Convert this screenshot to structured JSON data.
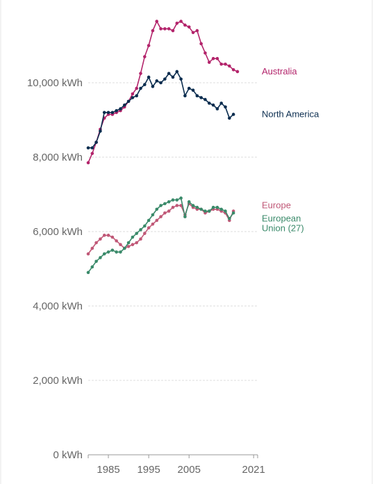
{
  "chart_data": {
    "type": "line",
    "title": "",
    "xlabel": "",
    "ylabel": "",
    "x_ticks": [
      1985,
      1995,
      2005,
      2021
    ],
    "y_ticks": [
      {
        "value": 0,
        "label": "0 kWh"
      },
      {
        "value": 2000,
        "label": "2,000 kWh"
      },
      {
        "value": 4000,
        "label": "4,000 kWh"
      },
      {
        "value": 6000,
        "label": "6,000 kWh"
      },
      {
        "value": 8000,
        "label": "8,000 kWh"
      },
      {
        "value": 10000,
        "label": "10,000 kWh"
      }
    ],
    "xlim": [
      1980,
      2022
    ],
    "ylim": [
      0,
      12000
    ],
    "grid": true,
    "x": [
      1980,
      1981,
      1982,
      1983,
      1984,
      1985,
      1986,
      1987,
      1988,
      1989,
      1990,
      1991,
      1992,
      1993,
      1994,
      1995,
      1996,
      1997,
      1998,
      1999,
      2000,
      2001,
      2002,
      2003,
      2004,
      2005,
      2006,
      2007,
      2008,
      2009,
      2010,
      2011,
      2012,
      2013,
      2014,
      2015,
      2016,
      2017,
      2018,
      2019,
      2020,
      2021,
      2022
    ],
    "series": [
      {
        "name": "Australia",
        "color": "#b3246b",
        "values": [
          7850,
          8100,
          8400,
          8750,
          9050,
          9150,
          9150,
          9200,
          9250,
          9350,
          9500,
          9700,
          9850,
          10250,
          10700,
          11000,
          11400,
          11650,
          11450,
          11450,
          11450,
          11400,
          11600,
          11650,
          11550,
          11500,
          11350,
          11400,
          11050,
          10800,
          10550,
          10650,
          10650,
          10500,
          10500,
          10450,
          10350,
          10300,
          null,
          null,
          null,
          null,
          null
        ]
      },
      {
        "name": "North America",
        "color": "#0b2d4f",
        "values": [
          8250,
          8250,
          8400,
          8700,
          9200,
          9200,
          9200,
          9250,
          9300,
          9400,
          9500,
          9600,
          9650,
          9850,
          9950,
          10150,
          9900,
          10050,
          10000,
          10100,
          10250,
          10150,
          10300,
          10100,
          9650,
          9850,
          9800,
          9650,
          9600,
          9550,
          9450,
          9400,
          9300,
          9450,
          9350,
          9050,
          9150,
          null,
          null,
          null,
          null,
          null,
          null
        ]
      },
      {
        "name": "Europe",
        "color": "#c05877",
        "values": [
          5400,
          5550,
          5700,
          5800,
          5900,
          5900,
          5850,
          5750,
          5650,
          5550,
          5600,
          5650,
          5700,
          5800,
          5950,
          6100,
          6200,
          6300,
          6400,
          6500,
          6550,
          6650,
          6700,
          6700,
          6450,
          6750,
          6650,
          6600,
          6600,
          6500,
          6550,
          6600,
          6600,
          6550,
          6500,
          6300,
          6550,
          null,
          null,
          null,
          null,
          null,
          null
        ]
      },
      {
        "name": "European Union (27)",
        "color": "#3a8a6a",
        "values": [
          4900,
          5050,
          5200,
          5300,
          5400,
          5450,
          5500,
          5450,
          5450,
          5550,
          5700,
          5850,
          5950,
          6050,
          6150,
          6300,
          6450,
          6600,
          6700,
          6750,
          6800,
          6850,
          6850,
          6900,
          6400,
          6800,
          6700,
          6650,
          6600,
          6550,
          6550,
          6650,
          6650,
          6600,
          6550,
          6350,
          6500,
          null,
          null,
          null,
          null,
          null,
          null
        ]
      }
    ],
    "end_labels": [
      {
        "series": "Australia",
        "lines": [
          "Australia"
        ]
      },
      {
        "series": "North America",
        "lines": [
          "North America"
        ]
      },
      {
        "series": "Europe",
        "lines": [
          "Europe"
        ]
      },
      {
        "series": "European Union (27)",
        "lines": [
          "European",
          "Union (27)"
        ]
      }
    ]
  }
}
